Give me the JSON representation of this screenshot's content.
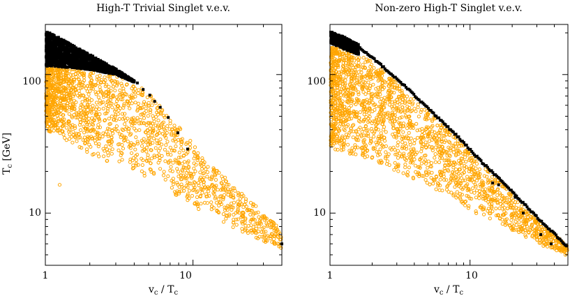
{
  "figure": {
    "ylabel_main": "T",
    "ylabel_sub": "c",
    "ylabel_unit": " [GeV]"
  },
  "chart_data": [
    {
      "type": "scatter",
      "title": "High-T Trivial Singlet v.e.v.",
      "xlabel": {
        "v": "v",
        "v_sub": "c",
        "sep": " / ",
        "T": "T",
        "T_sub": "c"
      },
      "ylabel": "Tc [GeV]",
      "xscale": "log",
      "yscale": "log",
      "xlim": [
        1,
        40
      ],
      "ylim": [
        4.2,
        230
      ],
      "xticks": [
        {
          "value": 1,
          "label": "1"
        },
        {
          "value": 10,
          "label": "10"
        }
      ],
      "yticks": [
        {
          "value": 10,
          "label": "10"
        },
        {
          "value": 100,
          "label": "100"
        }
      ],
      "series": [
        {
          "name": "black",
          "color": "#000000",
          "marker": "filled-square",
          "band": {
            "x_range": [
              1.0,
              4.0
            ],
            "upper": {
              "x": [
                1.0,
                1.5,
                2.0,
                3.0,
                4.0
              ],
              "y": [
                210,
                165,
                140,
                110,
                90
              ]
            },
            "lower": {
              "x": [
                1.0,
                1.5,
                2.0,
                3.0,
                4.0
              ],
              "y": [
                115,
                112,
                108,
                100,
                88
              ]
            }
          },
          "points": [
            {
              "x": 4.2,
              "y": 87
            },
            {
              "x": 4.6,
              "y": 78
            },
            {
              "x": 5.1,
              "y": 71
            },
            {
              "x": 5.5,
              "y": 64
            },
            {
              "x": 6.0,
              "y": 58
            },
            {
              "x": 6.8,
              "y": 49
            },
            {
              "x": 7.9,
              "y": 38
            },
            {
              "x": 9.2,
              "y": 29
            },
            {
              "x": 40.0,
              "y": 6.0
            }
          ]
        },
        {
          "name": "orange",
          "color": "#ffa500",
          "marker": "open-circle",
          "band": {
            "x_range": [
              1.0,
              40.0
            ],
            "upper": {
              "x": [
                1.0,
                1.5,
                2.0,
                3.0,
                5.0,
                8.0,
                12.0,
                20.0,
                40.0
              ],
              "y": [
                115,
                110,
                105,
                100,
                75,
                42,
                25,
                15,
                7.5
              ]
            },
            "lower": {
              "x": [
                1.0,
                1.5,
                2.0,
                3.0,
                5.0,
                8.0,
                12.0,
                20.0,
                40.0
              ],
              "y": [
                40,
                32,
                27,
                22,
                18,
                13,
                10,
                7.5,
                5.5
              ]
            }
          },
          "points": [
            {
              "x": 1.25,
              "y": 16
            },
            {
              "x": 36.0,
              "y": 6.0
            },
            {
              "x": 25.0,
              "y": 9.0
            },
            {
              "x": 28.0,
              "y": 8.0
            },
            {
              "x": 18.0,
              "y": 11.0
            },
            {
              "x": 22.0,
              "y": 10.0
            }
          ]
        }
      ]
    },
    {
      "type": "scatter",
      "title": "Non-zero High-T Singlet v.e.v.",
      "xlabel": {
        "v": "v",
        "v_sub": "c",
        "sep": " / ",
        "T": "T",
        "T_sub": "c"
      },
      "ylabel": "",
      "xscale": "log",
      "yscale": "log",
      "xlim": [
        1,
        50
      ],
      "ylim": [
        4.2,
        230
      ],
      "xticks": [
        {
          "value": 1,
          "label": "1"
        },
        {
          "value": 10,
          "label": "10"
        }
      ],
      "yticks": [
        {
          "value": 10,
          "label": "10"
        },
        {
          "value": 100,
          "label": "100"
        }
      ],
      "series": [
        {
          "name": "black",
          "color": "#000000",
          "marker": "filled-square",
          "band": {
            "x_range": [
              1.0,
              1.6
            ],
            "upper": {
              "x": [
                1.0,
                1.3,
                1.6
              ],
              "y": [
                205,
                185,
                165
              ]
            },
            "lower": {
              "x": [
                1.0,
                1.3,
                1.6
              ],
              "y": [
                170,
                150,
                140
              ]
            }
          },
          "edge": {
            "x": [
              1.6,
              2.0,
              3.0,
              5.0,
              8.0,
              12.0,
              20.0,
              30.0,
              50.0
            ],
            "y": [
              160,
              135,
              95,
              58,
              37,
              24,
              14.5,
              9.5,
              5.8
            ]
          },
          "points": [
            {
              "x": 16.0,
              "y": 16.0
            },
            {
              "x": 21.0,
              "y": 13.0
            },
            {
              "x": 24.0,
              "y": 10.0
            },
            {
              "x": 32.0,
              "y": 7.0
            },
            {
              "x": 38.0,
              "y": 6.0
            },
            {
              "x": 14.5,
              "y": 16.5
            }
          ]
        },
        {
          "name": "orange",
          "color": "#ffa500",
          "marker": "open-circle",
          "band": {
            "x_range": [
              1.0,
              50.0
            ],
            "upper": {
              "x": [
                1.0,
                1.5,
                2.0,
                3.0,
                5.0,
                8.0,
                12.0,
                20.0,
                30.0,
                50.0
              ],
              "y": [
                160,
                145,
                125,
                88,
                55,
                35,
                23,
                14,
                9.0,
                5.8
              ]
            },
            "lower": {
              "x": [
                1.0,
                1.5,
                2.0,
                3.0,
                5.0,
                8.0,
                12.0,
                20.0,
                30.0,
                50.0
              ],
              "y": [
                28,
                26,
                24,
                20,
                16,
                12,
                9.5,
                7.5,
                6.0,
                5.0
              ]
            }
          },
          "points": [
            {
              "x": 40.0,
              "y": 7.0
            },
            {
              "x": 45.0,
              "y": 6.0
            },
            {
              "x": 48.0,
              "y": 5.0
            }
          ]
        }
      ]
    }
  ]
}
